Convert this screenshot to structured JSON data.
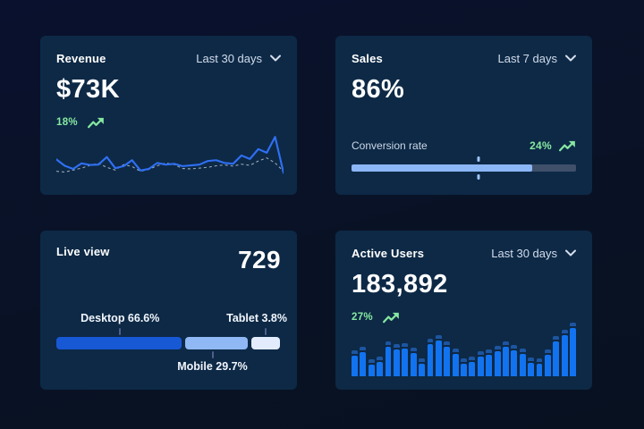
{
  "colors": {
    "page_background": "#091225",
    "card_background": "#0d2946",
    "accent_green": "#86e7a0",
    "line_blue": "#2f6ff2",
    "dashed_line_gray": "#b7c2d4",
    "progress_fill": "#8cb7f6",
    "progress_track": "#40506a",
    "bar_body_blue": "#1273f0",
    "bar_cap_blue": "#1d55a0",
    "desktop_blue": "#1758d5",
    "mobile_light_blue": "#8fb8f4",
    "tablet_pale_blue": "#e2ecfc"
  },
  "cards": {
    "revenue": {
      "title": "Revenue",
      "period": "Last 30 days",
      "value": "$73K",
      "delta": "18%",
      "chart_data": {
        "type": "line",
        "series": [
          {
            "name": "current",
            "style": "solid",
            "values": [
              40,
              24,
              16,
              30,
              26,
              27,
              46,
              18,
              23,
              38,
              12,
              16,
              31,
              27,
              29,
              23,
              25,
              27,
              36,
              38,
              31,
              29,
              50,
              41,
              66,
              57,
              97,
              6
            ]
          },
          {
            "name": "previous",
            "style": "dashed",
            "values": [
              10,
              8,
              13,
              18,
              25,
              30,
              20,
              13,
              27,
              22,
              10,
              15,
              24,
              31,
              27,
              17,
              16,
              18,
              20,
              24,
              26,
              23,
              28,
              25,
              36,
              44,
              31,
              10
            ]
          }
        ]
      }
    },
    "sales": {
      "title": "Sales",
      "period": "Last 7 days",
      "value": "86%",
      "metric_label": "Conversion rate",
      "delta": "24%",
      "progress": {
        "fill_percent": 80.5,
        "marker_percent": 56.5
      }
    },
    "live_view": {
      "title": "Live view",
      "value": "729",
      "chart_data": {
        "type": "bar",
        "segments": [
          {
            "name": "Desktop",
            "label": "Desktop 66.6%",
            "percent": 66.6,
            "display_width": 56,
            "color": "#1758d5"
          },
          {
            "name": "Mobile",
            "label": "Mobile 29.7%",
            "percent": 29.7,
            "display_width": 28,
            "color": "#8fb8f4"
          },
          {
            "name": "Tablet",
            "label": "Tablet 3.8%",
            "percent": 3.8,
            "display_width": 12.8,
            "color": "#e2ecfc"
          }
        ]
      }
    },
    "active_users": {
      "title": "Active Users",
      "period": "Last 30 days",
      "value": "183,892",
      "delta": "27%",
      "chart_data": {
        "type": "bar",
        "values": [
          42,
          50,
          24,
          30,
          62,
          55,
          58,
          48,
          26,
          66,
          74,
          62,
          46,
          26,
          30,
          40,
          44,
          52,
          62,
          54,
          46,
          28,
          26,
          44,
          72,
          86,
          100
        ]
      }
    }
  }
}
